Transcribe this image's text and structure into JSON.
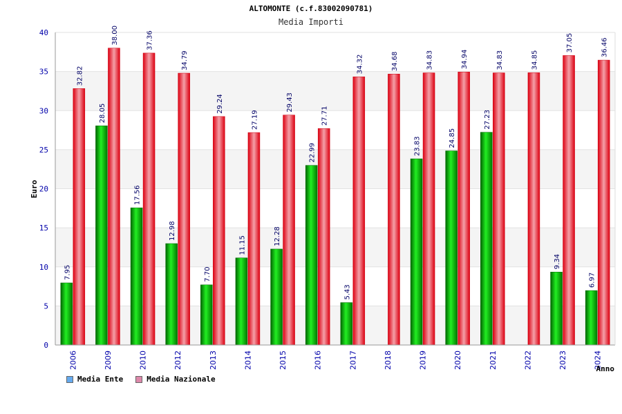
{
  "chart_data": {
    "type": "bar",
    "title": "ALTOMONTE (c.f.83002090781)",
    "subtitle": "Media Importi",
    "ylabel": "Euro",
    "xlabel": "Anno",
    "ylim": [
      0,
      40
    ],
    "yticks": [
      0,
      5,
      10,
      15,
      20,
      25,
      30,
      35,
      40
    ],
    "grid": true,
    "legend_position": "bottom-left",
    "categories": [
      "2006",
      "2009",
      "2010",
      "2012",
      "2013",
      "2014",
      "2015",
      "2016",
      "2017",
      "2018",
      "2019",
      "2020",
      "2021",
      "2022",
      "2023",
      "2024"
    ],
    "series": [
      {
        "name": "Media Ente",
        "color": "#00cc00",
        "legend_color": "#66aaee",
        "values": [
          7.95,
          28.05,
          17.56,
          12.98,
          7.7,
          11.15,
          12.28,
          22.99,
          5.43,
          null,
          23.83,
          24.85,
          27.23,
          null,
          9.34,
          6.97
        ],
        "labels": [
          "7.95",
          "28.05",
          "17.56",
          "12.98",
          "7.70",
          "11.15",
          "12.28",
          "22.99",
          "5.43",
          "",
          "23.83",
          "24.85",
          "27.23",
          "",
          "9.34",
          "6.97"
        ]
      },
      {
        "name": "Media Nazionale",
        "color": "#ee1122",
        "legend_color": "#dd88aa",
        "values": [
          32.82,
          38.0,
          37.36,
          34.79,
          29.24,
          27.19,
          29.43,
          27.71,
          34.32,
          34.68,
          34.83,
          34.94,
          34.83,
          34.85,
          37.05,
          36.46
        ],
        "labels": [
          "32.82",
          "38.00",
          "37.36",
          "34.79",
          "29.24",
          "27.19",
          "29.43",
          "27.71",
          "34.32",
          "34.68",
          "34.83",
          "34.94",
          "34.83",
          "34.85",
          "37.05",
          "36.46"
        ]
      }
    ]
  }
}
